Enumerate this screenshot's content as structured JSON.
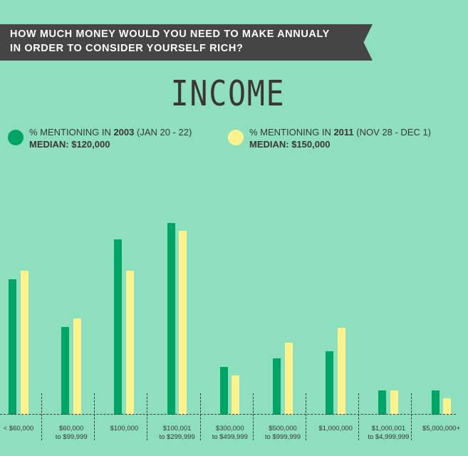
{
  "header": {
    "question_line1": "How much money would you need to make annualy",
    "question_line2": "in order to consider yourself rich?"
  },
  "title": "INCOME",
  "legend": [
    {
      "prefix": "% MENTIONING IN ",
      "year": "2003",
      "dates": " (JAN 20 - 22)",
      "median": "MEDIAN: $120,000",
      "color": "#00a464"
    },
    {
      "prefix": "% MENTIONING IN ",
      "year": "2011",
      "dates": " (NOV 28 - DEC 1)",
      "median": "MEDIAN: $150,000",
      "color": "#fdf28e"
    }
  ],
  "colors": {
    "background": "#8ddfbd",
    "banner": "#454545",
    "series_2003": "#00a464",
    "series_2011": "#fdf28e",
    "text": "#3b3535"
  },
  "chart_data": {
    "type": "bar",
    "title": "INCOME",
    "subtitle": "How much money would you need to make annualy in order to consider yourself rich?",
    "xlabel": "",
    "ylabel": "% mentioning",
    "grid": false,
    "legend_position": "top",
    "categories": [
      "< $60,000",
      "$60,000 to $99,999",
      "$100,000",
      "$100,001 to $299,999",
      "$300,000 to $499,999",
      "$500,000 to $999,999",
      "$1,000,000",
      "$1,000,001 to $4,999,999",
      "$5,000,000+"
    ],
    "category_lines": [
      [
        "< $60,000"
      ],
      [
        "$60,000",
        "to $99,999"
      ],
      [
        "$100,000"
      ],
      [
        "$100,001",
        "to $299,999"
      ],
      [
        "$300,000",
        "to $499,999"
      ],
      [
        "$500,000",
        "to $999,999"
      ],
      [
        "$1,000,000"
      ],
      [
        "$1,000,001",
        "to $4,999,999"
      ],
      [
        "$5,000,000+"
      ]
    ],
    "series": [
      {
        "name": "% mentioning in 2003 (Jan 20 - 22)",
        "median": "$120,000",
        "values": [
          19,
          12,
          24,
          26,
          6,
          8,
          9,
          3,
          3
        ]
      },
      {
        "name": "% mentioning in 2011 (Nov 28 - Dec 1)",
        "median": "$150,000",
        "values": [
          20,
          13,
          20,
          25,
          5,
          10,
          12,
          3,
          2
        ]
      }
    ],
    "bar_pixel_tops": {
      "2003": [
        392,
        459,
        336,
        313,
        515,
        503,
        493,
        548,
        548
      ],
      "2011": [
        380,
        447,
        380,
        324,
        527,
        481,
        460,
        548,
        559
      ]
    },
    "baseline_y": 582
  }
}
